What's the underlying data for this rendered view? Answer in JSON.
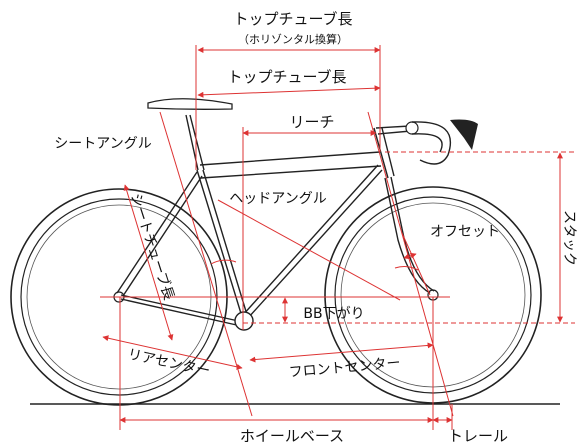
{
  "labels": {
    "top_tube_horizontal": "トップチューブ長",
    "top_tube_horizontal_note": "（ホリゾンタル換算）",
    "top_tube": "トップチューブ長",
    "reach": "リーチ",
    "seat_angle": "シートアングル",
    "head_angle": "ヘッドアングル",
    "seat_tube": "シートチューブ長",
    "offset": "オフセット",
    "stack": "スタック",
    "bb_drop": "BB下がり",
    "rear_center": "リアセンター",
    "front_center": "フロントセンター",
    "wheelbase": "ホイールベース",
    "trail": "トレール"
  },
  "colors": {
    "dimension_lines": "#d33333",
    "frame_lines": "#222222"
  }
}
